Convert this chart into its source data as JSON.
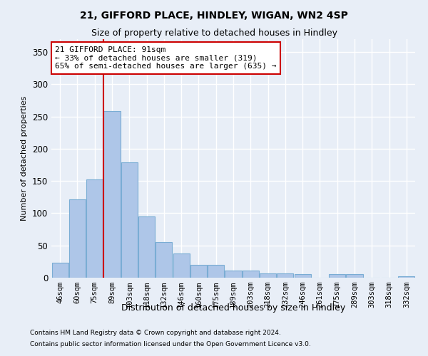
{
  "title1": "21, GIFFORD PLACE, HINDLEY, WIGAN, WN2 4SP",
  "title2": "Size of property relative to detached houses in Hindley",
  "xlabel": "Distribution of detached houses by size in Hindley",
  "ylabel": "Number of detached properties",
  "footer1": "Contains HM Land Registry data © Crown copyright and database right 2024.",
  "footer2": "Contains public sector information licensed under the Open Government Licence v3.0.",
  "categories": [
    "46sqm",
    "60sqm",
    "75sqm",
    "89sqm",
    "103sqm",
    "118sqm",
    "132sqm",
    "146sqm",
    "160sqm",
    "175sqm",
    "189sqm",
    "203sqm",
    "218sqm",
    "232sqm",
    "246sqm",
    "261sqm",
    "275sqm",
    "289sqm",
    "303sqm",
    "318sqm",
    "332sqm"
  ],
  "values": [
    23,
    122,
    152,
    258,
    179,
    95,
    55,
    38,
    20,
    20,
    11,
    11,
    7,
    7,
    6,
    0,
    5,
    5,
    0,
    0,
    2
  ],
  "bar_color": "#aec6e8",
  "bar_edge_color": "#7aadd4",
  "background_color": "#e8eef7",
  "grid_color": "#ffffff",
  "vline_color": "#cc0000",
  "annotation_line1": "21 GIFFORD PLACE: 91sqm",
  "annotation_line2": "← 33% of detached houses are smaller (319)",
  "annotation_line3": "65% of semi-detached houses are larger (635) →",
  "annotation_box_color": "#ffffff",
  "annotation_box_edge_color": "#cc0000",
  "ylim": [
    0,
    370
  ],
  "yticks": [
    0,
    50,
    100,
    150,
    200,
    250,
    300,
    350
  ]
}
